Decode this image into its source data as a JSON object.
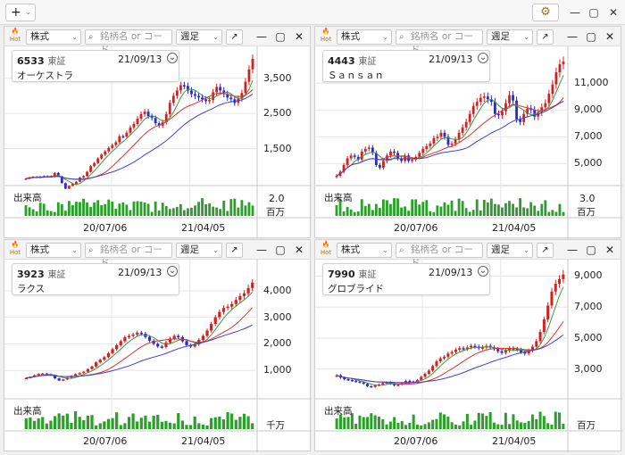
{
  "toolbar": {
    "add_label": "+",
    "add_chev": "⌄",
    "gear": "⚙",
    "min": "—",
    "max": "▢",
    "close": "✕"
  },
  "common": {
    "type_label": "株式",
    "search_placeholder": "銘柄名 or コード",
    "period_label": "週足",
    "expand": "↗",
    "min": "—",
    "max": "▢",
    "close": "✕",
    "hot": "Hot",
    "volume_label": "出来高",
    "x_ticks": [
      "20/07/06",
      "21/04/05"
    ],
    "date": "21/09/13",
    "exchange": "東証"
  },
  "colors": {
    "up": "#d62020",
    "down": "#2a2ad0",
    "ma_short": "#3a9a3a",
    "ma_mid": "#e03030",
    "ma_long": "#4040d0",
    "vol": "#2aa02a"
  },
  "panels": [
    {
      "code": "6533",
      "name": "オーケストラ",
      "y_ticks": [
        "3,500",
        "2,500",
        "1,500"
      ],
      "vol_ticks": [
        "2.0"
      ],
      "vol_unit": "百万",
      "chart_data": {
        "type": "candlestick",
        "ylim": [
          500,
          4200
        ],
        "y_ticks": [
          3500,
          2500,
          1500
        ],
        "series": [
          650,
          680,
          700,
          700,
          690,
          720,
          720,
          700,
          810,
          710,
          520,
          360,
          440,
          500,
          560,
          680,
          720,
          840,
          1000,
          1090,
          1220,
          1330,
          1420,
          1520,
          1600,
          1680,
          1850,
          1840,
          1950,
          2100,
          2200,
          2350,
          2480,
          2550,
          2420,
          2370,
          2220,
          2150,
          2250,
          2480,
          2800,
          3000,
          3150,
          3300,
          3280,
          3150,
          3050,
          3000,
          2950,
          2900,
          2850,
          2880,
          3100,
          3250,
          3150,
          3050,
          2950,
          2900,
          2800,
          2920,
          3080,
          3400,
          3750,
          4050
        ]
      }
    },
    {
      "code": "4443",
      "name": "Ｓａｎｓａｎ",
      "y_ticks": [
        "11,000",
        "9,000",
        "7,000",
        "5,000"
      ],
      "vol_ticks": [
        "3.0"
      ],
      "vol_unit": "百万",
      "chart_data": {
        "type": "candlestick",
        "ylim": [
          3500,
          13200
        ],
        "y_ticks": [
          11000,
          9000,
          7000,
          5000
        ],
        "series": [
          4100,
          4400,
          4900,
          5400,
          5600,
          5500,
          5300,
          5900,
          6100,
          6200,
          5800,
          4900,
          4700,
          5200,
          5600,
          5900,
          5800,
          5400,
          5200,
          5600,
          5200,
          5300,
          5500,
          5800,
          6100,
          6300,
          6500,
          6900,
          7000,
          7300,
          7000,
          6400,
          6500,
          6800,
          7300,
          7700,
          8100,
          8700,
          9300,
          9600,
          9900,
          10000,
          9800,
          9600,
          8700,
          8600,
          8900,
          9500,
          10100,
          9700,
          8300,
          8100,
          8700,
          9100,
          9000,
          8500,
          8800,
          9200,
          9500,
          10200,
          10900,
          11800,
          12400,
          12600
        ]
      }
    },
    {
      "code": "3923",
      "name": "ラクス",
      "y_ticks": [
        "4,000",
        "3,000",
        "2,000",
        "1,000"
      ],
      "vol_ticks": [],
      "vol_unit": "千万",
      "chart_data": {
        "type": "candlestick",
        "ylim": [
          0,
          4900
        ],
        "y_ticks": [
          4000,
          3000,
          2000,
          1000
        ],
        "series": [
          720,
          760,
          820,
          870,
          880,
          860,
          820,
          700,
          620,
          660,
          730,
          800,
          860,
          900,
          950,
          1050,
          1150,
          1300,
          1400,
          1500,
          1650,
          1800,
          1950,
          2100,
          2250,
          2300,
          2350,
          2420,
          2380,
          2260,
          2120,
          2000,
          1900,
          1880,
          2050,
          2200,
          2300,
          2250,
          2100,
          1950,
          1900,
          1980,
          2150,
          2300,
          2500,
          2750,
          3000,
          3200,
          3350,
          3400,
          3500,
          3650,
          3800,
          3900,
          4100,
          4300
        ]
      }
    },
    {
      "code": "7990",
      "name": "グロブライド",
      "y_ticks": [
        "9,000",
        "7,000",
        "5,000",
        "3,000"
      ],
      "vol_ticks": [],
      "vol_unit": "百万",
      "chart_data": {
        "type": "candlestick",
        "ylim": [
          1200,
          9600
        ],
        "y_ticks": [
          9000,
          7000,
          5000,
          3000
        ],
        "series": [
          2600,
          2450,
          2350,
          2300,
          2250,
          2200,
          2150,
          2050,
          1900,
          1850,
          1950,
          2000,
          2100,
          2150,
          2050,
          1950,
          2000,
          2100,
          2250,
          2200,
          2150,
          2300,
          2500,
          2700,
          2900,
          3200,
          3500,
          3700,
          3800,
          4000,
          4100,
          4250,
          4350,
          4300,
          4400,
          4500,
          4450,
          4350,
          4400,
          4500,
          4400,
          4300,
          4150,
          4050,
          4200,
          4350,
          4300,
          4250,
          4100,
          4000,
          4200,
          4450,
          4800,
          5400,
          6200,
          7100,
          8000,
          8500,
          8800,
          9100
        ]
      }
    }
  ]
}
